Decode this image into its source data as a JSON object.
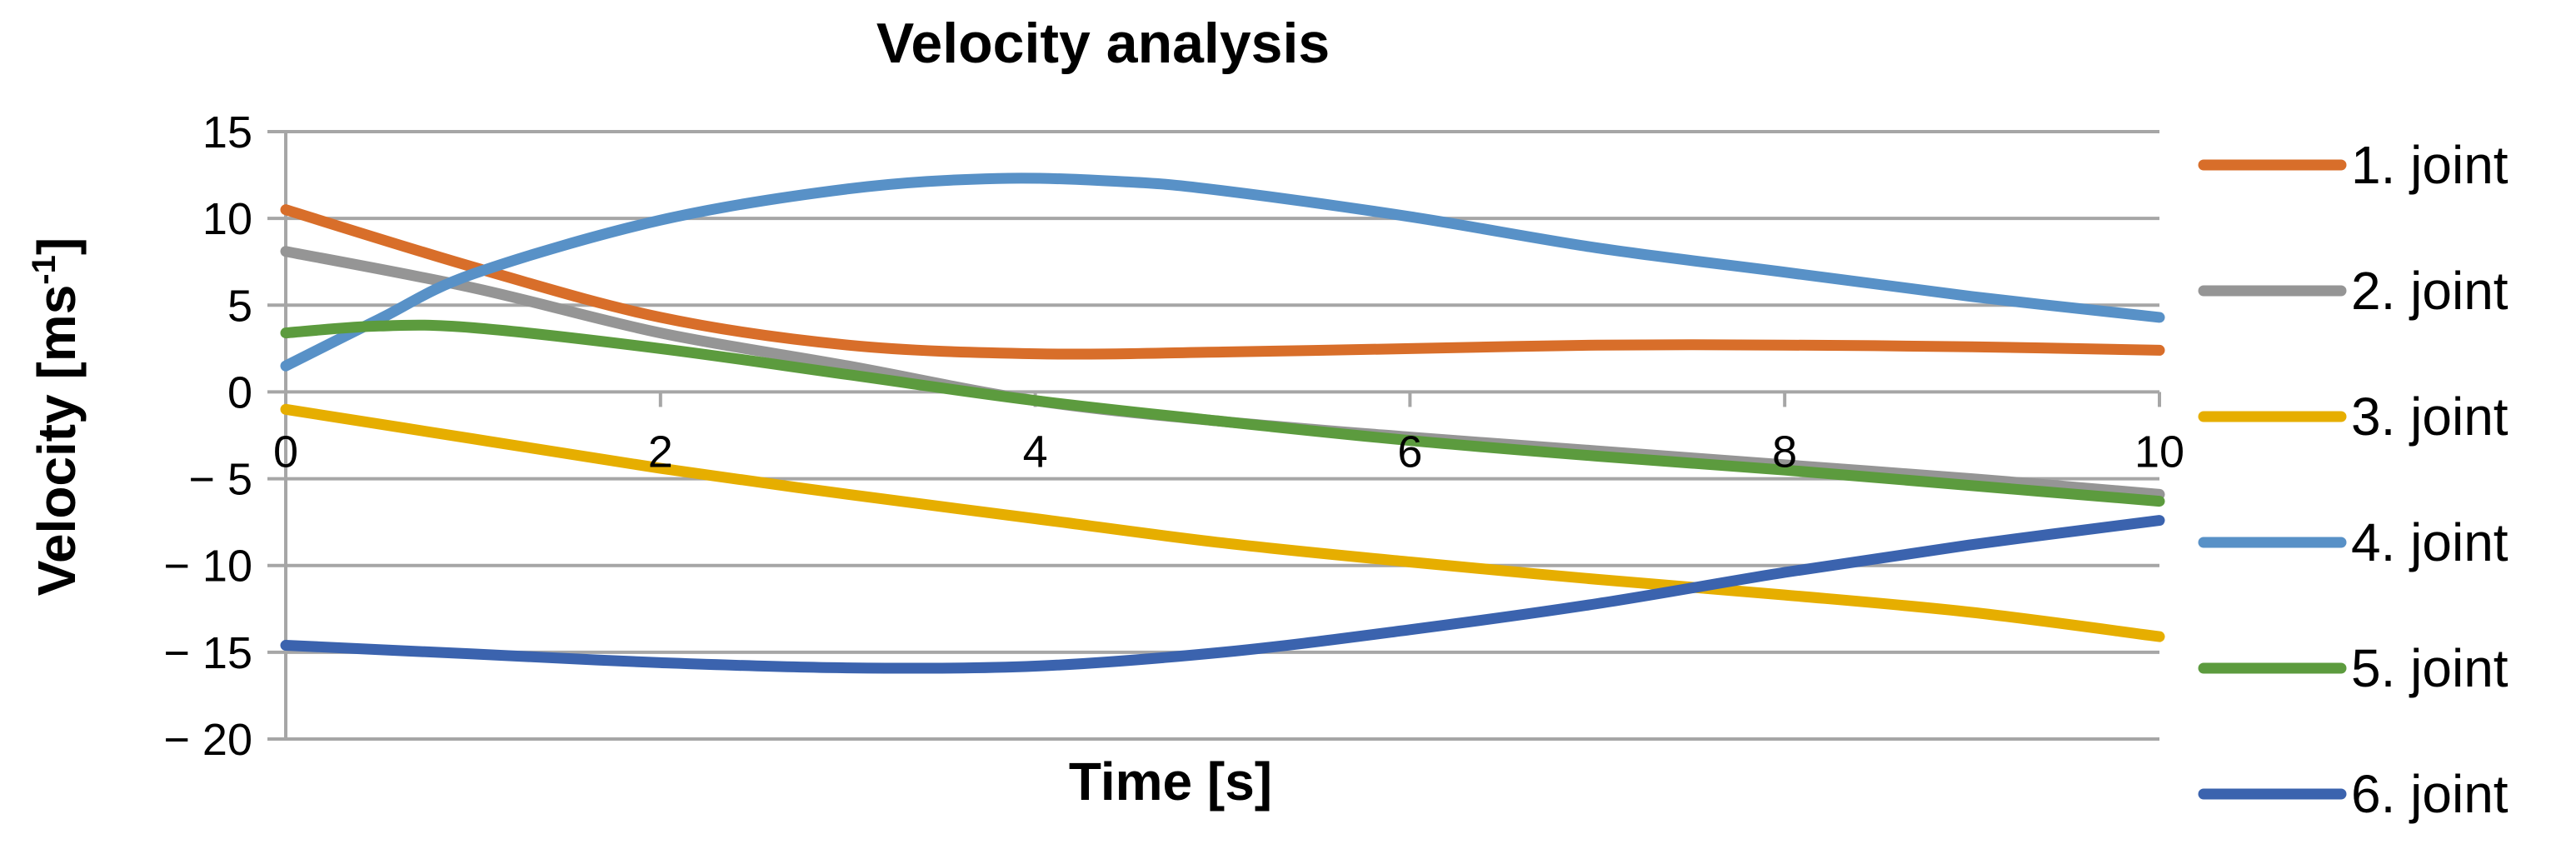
{
  "chart_data": {
    "type": "line",
    "title": "Velocity analysis",
    "xlabel": "Time [s]",
    "ylabel_main": "Velocity [ms",
    "ylabel_sup": "-1",
    "ylabel_close": "]",
    "xlim": [
      0,
      10
    ],
    "ylim": [
      -20,
      15
    ],
    "xticks": [
      0,
      2,
      4,
      6,
      8,
      10
    ],
    "xtick_labels": [
      "0",
      "2",
      "4",
      "6",
      "8",
      "10"
    ],
    "yticks": [
      15,
      10,
      5,
      0,
      -5,
      -10,
      -15,
      -20
    ],
    "ytick_labels": [
      "15",
      "10",
      "5",
      "0",
      "− 5",
      "− 10",
      "− 15",
      "− 20"
    ],
    "grid": true,
    "legend_position": "right",
    "series": [
      {
        "name": "1. joint",
        "color": "#D86E2A",
        "x": [
          0,
          1,
          2,
          3,
          4,
          5,
          6,
          7,
          8,
          9,
          10
        ],
        "values": [
          10.5,
          7.2,
          4.3,
          2.7,
          2.2,
          2.3,
          2.5,
          2.7,
          2.7,
          2.6,
          2.4
        ]
      },
      {
        "name": "2. joint",
        "color": "#959595",
        "x": [
          0,
          1,
          2,
          3,
          4,
          5,
          6,
          7,
          8,
          9,
          10
        ],
        "values": [
          8.1,
          6.0,
          3.4,
          1.5,
          -0.5,
          -1.7,
          -2.6,
          -3.4,
          -4.2,
          -5.0,
          -5.9
        ]
      },
      {
        "name": "3. joint",
        "color": "#E6AE00",
        "x": [
          0,
          1,
          2,
          3,
          4,
          5,
          6,
          7,
          8,
          9,
          10
        ],
        "values": [
          -1.0,
          -2.7,
          -4.4,
          -5.9,
          -7.3,
          -8.7,
          -9.8,
          -10.8,
          -11.7,
          -12.7,
          -14.1
        ]
      },
      {
        "name": "4. joint",
        "color": "#5891C7",
        "x": [
          0,
          0.5,
          1,
          2,
          3,
          3.8,
          4.5,
          5,
          6,
          7,
          8,
          9,
          10
        ],
        "values": [
          1.5,
          4.2,
          6.8,
          9.9,
          11.7,
          12.3,
          12.1,
          11.6,
          10.1,
          8.3,
          6.9,
          5.5,
          4.3
        ]
      },
      {
        "name": "5. joint",
        "color": "#5C9B3E",
        "x": [
          0,
          0.5,
          1,
          2,
          3,
          4,
          5,
          6,
          7,
          8,
          9,
          10
        ],
        "values": [
          3.4,
          3.8,
          3.7,
          2.5,
          1.0,
          -0.5,
          -1.7,
          -2.8,
          -3.7,
          -4.5,
          -5.4,
          -6.3
        ]
      },
      {
        "name": "6. joint",
        "color": "#3B63AE",
        "x": [
          0,
          1,
          2,
          3,
          4,
          5,
          6,
          7,
          8,
          9,
          10
        ],
        "values": [
          -14.6,
          -15.1,
          -15.6,
          -15.9,
          -15.8,
          -15.0,
          -13.7,
          -12.2,
          -10.4,
          -8.8,
          -7.4
        ]
      }
    ]
  }
}
